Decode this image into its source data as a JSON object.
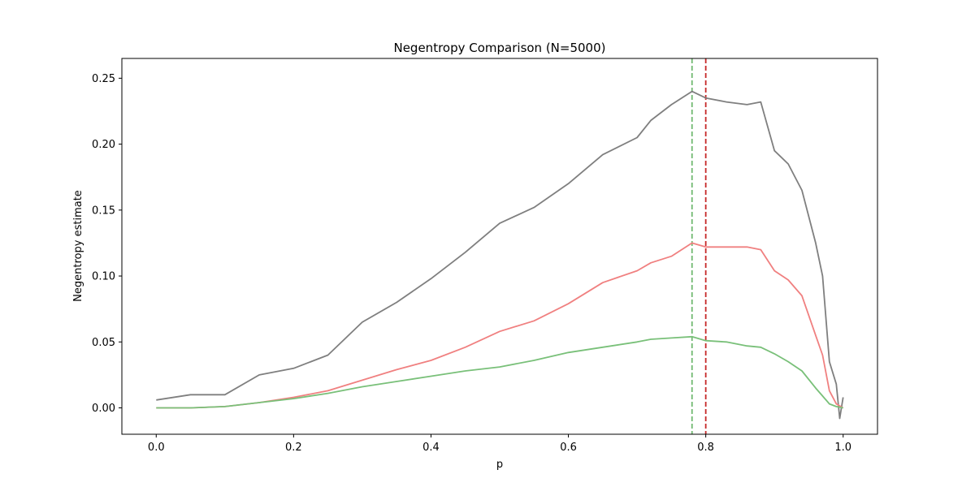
{
  "chart_data": {
    "type": "line",
    "title": "Negentropy Comparison (N=5000)",
    "xlabel": "p",
    "ylabel": "Negentropy estimate",
    "xlim": [
      -0.05,
      1.05
    ],
    "ylim": [
      -0.02,
      0.265
    ],
    "xticks": [
      0.0,
      0.2,
      0.4,
      0.6,
      0.8,
      1.0
    ],
    "xtick_labels": [
      "0.0",
      "0.2",
      "0.4",
      "0.6",
      "0.8",
      "1.0"
    ],
    "yticks": [
      0.0,
      0.05,
      0.1,
      0.15,
      0.2,
      0.25
    ],
    "ytick_labels": [
      "0.00",
      "0.05",
      "0.10",
      "0.15",
      "0.20",
      "0.25"
    ],
    "grid": false,
    "legend": "none",
    "vlines": [
      {
        "x": 0.78,
        "color": "#71b971",
        "style": "dashed"
      },
      {
        "x": 0.8,
        "color": "#c62828",
        "style": "dashed"
      }
    ],
    "series": [
      {
        "color": "#7f7f7f",
        "points": [
          [
            0.0,
            0.006
          ],
          [
            0.05,
            0.01
          ],
          [
            0.1,
            0.01
          ],
          [
            0.15,
            0.025
          ],
          [
            0.2,
            0.03
          ],
          [
            0.25,
            0.04
          ],
          [
            0.3,
            0.065
          ],
          [
            0.35,
            0.08
          ],
          [
            0.4,
            0.098
          ],
          [
            0.45,
            0.118
          ],
          [
            0.5,
            0.14
          ],
          [
            0.55,
            0.152
          ],
          [
            0.6,
            0.17
          ],
          [
            0.65,
            0.192
          ],
          [
            0.7,
            0.205
          ],
          [
            0.72,
            0.218
          ],
          [
            0.75,
            0.23
          ],
          [
            0.78,
            0.24
          ],
          [
            0.8,
            0.235
          ],
          [
            0.83,
            0.232
          ],
          [
            0.86,
            0.23
          ],
          [
            0.88,
            0.232
          ],
          [
            0.9,
            0.195
          ],
          [
            0.92,
            0.185
          ],
          [
            0.94,
            0.165
          ],
          [
            0.96,
            0.125
          ],
          [
            0.97,
            0.1
          ],
          [
            0.98,
            0.035
          ],
          [
            0.99,
            0.018
          ],
          [
            0.995,
            -0.008
          ],
          [
            1.0,
            0.008
          ]
        ]
      },
      {
        "color": "#f08080",
        "points": [
          [
            0.0,
            0.0
          ],
          [
            0.05,
            0.0
          ],
          [
            0.1,
            0.001
          ],
          [
            0.15,
            0.004
          ],
          [
            0.2,
            0.008
          ],
          [
            0.25,
            0.013
          ],
          [
            0.3,
            0.021
          ],
          [
            0.35,
            0.029
          ],
          [
            0.4,
            0.036
          ],
          [
            0.45,
            0.046
          ],
          [
            0.5,
            0.058
          ],
          [
            0.55,
            0.066
          ],
          [
            0.6,
            0.079
          ],
          [
            0.65,
            0.095
          ],
          [
            0.7,
            0.104
          ],
          [
            0.72,
            0.11
          ],
          [
            0.75,
            0.115
          ],
          [
            0.78,
            0.125
          ],
          [
            0.8,
            0.122
          ],
          [
            0.83,
            0.122
          ],
          [
            0.86,
            0.122
          ],
          [
            0.88,
            0.12
          ],
          [
            0.9,
            0.104
          ],
          [
            0.92,
            0.097
          ],
          [
            0.94,
            0.085
          ],
          [
            0.96,
            0.055
          ],
          [
            0.97,
            0.04
          ],
          [
            0.98,
            0.013
          ],
          [
            0.99,
            0.003
          ],
          [
            1.0,
            0.0
          ]
        ]
      },
      {
        "color": "#79c079",
        "points": [
          [
            0.0,
            0.0
          ],
          [
            0.05,
            0.0
          ],
          [
            0.1,
            0.001
          ],
          [
            0.15,
            0.004
          ],
          [
            0.2,
            0.007
          ],
          [
            0.25,
            0.011
          ],
          [
            0.3,
            0.016
          ],
          [
            0.35,
            0.02
          ],
          [
            0.4,
            0.024
          ],
          [
            0.45,
            0.028
          ],
          [
            0.5,
            0.031
          ],
          [
            0.55,
            0.036
          ],
          [
            0.6,
            0.042
          ],
          [
            0.65,
            0.046
          ],
          [
            0.7,
            0.05
          ],
          [
            0.72,
            0.052
          ],
          [
            0.75,
            0.053
          ],
          [
            0.78,
            0.054
          ],
          [
            0.8,
            0.051
          ],
          [
            0.83,
            0.05
          ],
          [
            0.86,
            0.047
          ],
          [
            0.88,
            0.046
          ],
          [
            0.9,
            0.041
          ],
          [
            0.92,
            0.035
          ],
          [
            0.94,
            0.028
          ],
          [
            0.96,
            0.015
          ],
          [
            0.97,
            0.009
          ],
          [
            0.98,
            0.003
          ],
          [
            0.99,
            0.001
          ],
          [
            1.0,
            0.0
          ]
        ]
      }
    ]
  }
}
